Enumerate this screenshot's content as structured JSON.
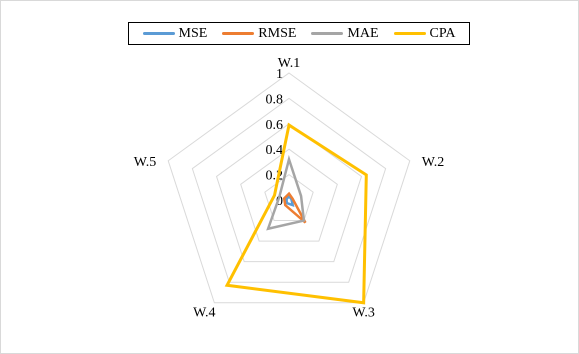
{
  "chart_data": {
    "type": "radar",
    "categories": [
      "W.1",
      "W.2",
      "W.3",
      "W.4",
      "W.5"
    ],
    "axis_ticks": [
      "0",
      "0.2",
      "0.4",
      "0.6",
      "0.8",
      "1"
    ],
    "rlim": [
      0,
      1
    ],
    "grid": true,
    "legend_position": "top",
    "series": [
      {
        "name": "MSE",
        "color": "#5b9bd5",
        "values": [
          0.03,
          0.02,
          0.05,
          0.03,
          0.02
        ]
      },
      {
        "name": "RMSE",
        "color": "#ed7d31",
        "values": [
          0.05,
          0.03,
          0.22,
          0.05,
          0.04
        ]
      },
      {
        "name": "MAE",
        "color": "#a5a5a5",
        "values": [
          0.32,
          0.1,
          0.2,
          0.28,
          0.08
        ]
      },
      {
        "name": "CPA",
        "color": "#ffc000",
        "values": [
          0.59,
          0.64,
          1.0,
          0.83,
          0.12
        ]
      }
    ]
  }
}
